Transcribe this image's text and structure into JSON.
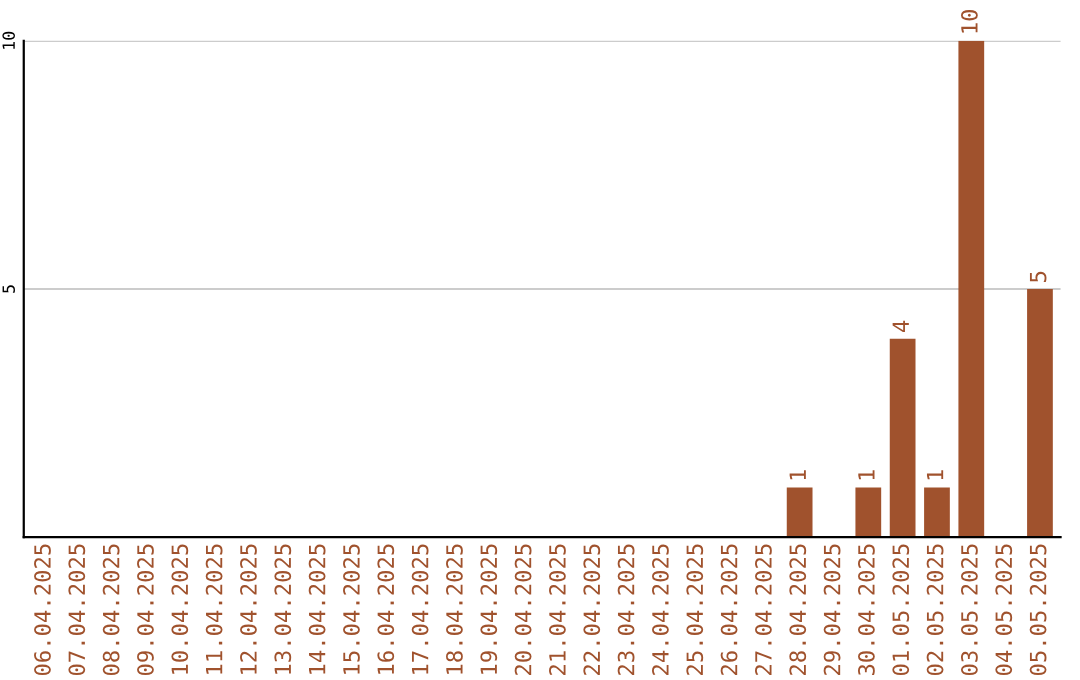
{
  "chart_data": {
    "type": "bar",
    "categories": [
      "06.04.2025",
      "07.04.2025",
      "08.04.2025",
      "09.04.2025",
      "10.04.2025",
      "11.04.2025",
      "12.04.2025",
      "13.04.2025",
      "14.04.2025",
      "15.04.2025",
      "16.04.2025",
      "17.04.2025",
      "18.04.2025",
      "19.04.2025",
      "20.04.2025",
      "21.04.2025",
      "22.04.2025",
      "23.04.2025",
      "24.04.2025",
      "25.04.2025",
      "26.04.2025",
      "27.04.2025",
      "28.04.2025",
      "29.04.2025",
      "30.04.2025",
      "01.05.2025",
      "02.05.2025",
      "03.05.2025",
      "04.05.2025",
      "05.05.2025"
    ],
    "values": [
      0,
      0,
      0,
      0,
      0,
      0,
      0,
      0,
      0,
      0,
      0,
      0,
      0,
      0,
      0,
      0,
      0,
      0,
      0,
      0,
      0,
      0,
      1,
      0,
      1,
      4,
      1,
      10,
      0,
      5
    ],
    "value_labels": [
      null,
      null,
      null,
      null,
      null,
      null,
      null,
      null,
      null,
      null,
      null,
      null,
      null,
      null,
      null,
      null,
      null,
      null,
      null,
      null,
      null,
      null,
      "1",
      null,
      "1",
      "4",
      "1",
      "10",
      null,
      "5"
    ],
    "color": "#a0522d",
    "ylim": [
      0,
      10
    ],
    "yticks": [
      5,
      10
    ],
    "grid": "y"
  }
}
